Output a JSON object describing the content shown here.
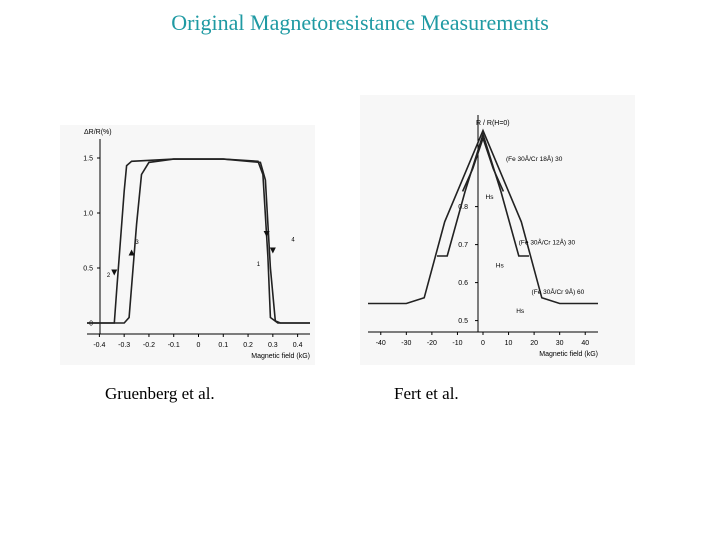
{
  "title": "Original Magnetoresistance Measurements",
  "captions": {
    "left": "Gruenberg et al.",
    "right": "Fert et al."
  },
  "chart_data": [
    {
      "type": "line",
      "ylabel": "ΔR/R(%)",
      "xlabel": "Magnetic field (kG)",
      "xlim": [
        -0.45,
        0.45
      ],
      "ylim": [
        -0.1,
        1.6
      ],
      "xticks": [
        "-0.4",
        "-0.3",
        "-0.2",
        "-0.1",
        "0",
        "0.1",
        "0.2",
        "0.3",
        "0.4"
      ],
      "xtick_values": [
        -0.4,
        -0.3,
        -0.2,
        -0.1,
        0,
        0.1,
        0.2,
        0.3,
        0.4
      ],
      "yticks": [
        "0",
        "0.5",
        "1.0",
        "1.5"
      ],
      "ytick_values": [
        0,
        0.5,
        1.0,
        1.5
      ],
      "series": [
        {
          "x": [
            -0.45,
            -0.34,
            -0.33,
            -0.3,
            -0.29,
            -0.27,
            -0.1,
            0.1,
            0.24,
            0.26,
            0.28,
            0.29,
            0.32,
            0.45
          ],
          "y": [
            0,
            0,
            0.3,
            1.2,
            1.43,
            1.47,
            1.49,
            1.49,
            1.47,
            1.35,
            0.6,
            0.05,
            0,
            0
          ]
        },
        {
          "x": [
            -0.45,
            -0.3,
            -0.28,
            -0.25,
            -0.23,
            -0.2,
            -0.1,
            0.1,
            0.25,
            0.27,
            0.29,
            0.31,
            0.33,
            0.45
          ],
          "y": [
            0,
            0,
            0.05,
            0.9,
            1.35,
            1.46,
            1.49,
            1.49,
            1.46,
            1.3,
            0.5,
            0.02,
            0,
            0
          ]
        }
      ],
      "annotations": [
        "1",
        "2",
        "3",
        "4"
      ]
    },
    {
      "type": "line",
      "ylabel": "R / R(H=0)",
      "xlabel": "Magnetic field (kG)",
      "xlim": [
        -45,
        45
      ],
      "ylim": [
        0.47,
        1.02
      ],
      "xticks": [
        "-40",
        "-30",
        "-20",
        "-10",
        "0",
        "10",
        "20",
        "30",
        "40"
      ],
      "xtick_values": [
        -40,
        -30,
        -20,
        -10,
        0,
        10,
        20,
        30,
        40
      ],
      "yticks": [
        "0.5",
        "0.6",
        "0.7",
        "0.8"
      ],
      "ytick_values": [
        0.5,
        0.6,
        0.7,
        0.8
      ],
      "series": [
        {
          "name": "(Fe 30Å/Cr 18Å) 30",
          "x": [
            -8,
            -4,
            0,
            4,
            8
          ],
          "y": [
            0.84,
            0.9,
            0.98,
            0.9,
            0.84
          ]
        },
        {
          "name": "(Fe 30Å/Cr 12Å) 30",
          "x": [
            -18,
            -14,
            -7,
            0,
            7,
            14,
            18
          ],
          "y": [
            0.67,
            0.67,
            0.84,
            0.99,
            0.84,
            0.67,
            0.67
          ]
        },
        {
          "name": "(Fe 30Å/Cr 9Å) 60",
          "x": [
            -45,
            -30,
            -23,
            -15,
            0,
            15,
            23,
            30,
            45
          ],
          "y": [
            0.545,
            0.545,
            0.56,
            0.76,
            1.0,
            0.76,
            0.56,
            0.545,
            0.545
          ]
        }
      ],
      "annotations": [
        "Hs",
        "Hs",
        "Hs"
      ]
    }
  ]
}
